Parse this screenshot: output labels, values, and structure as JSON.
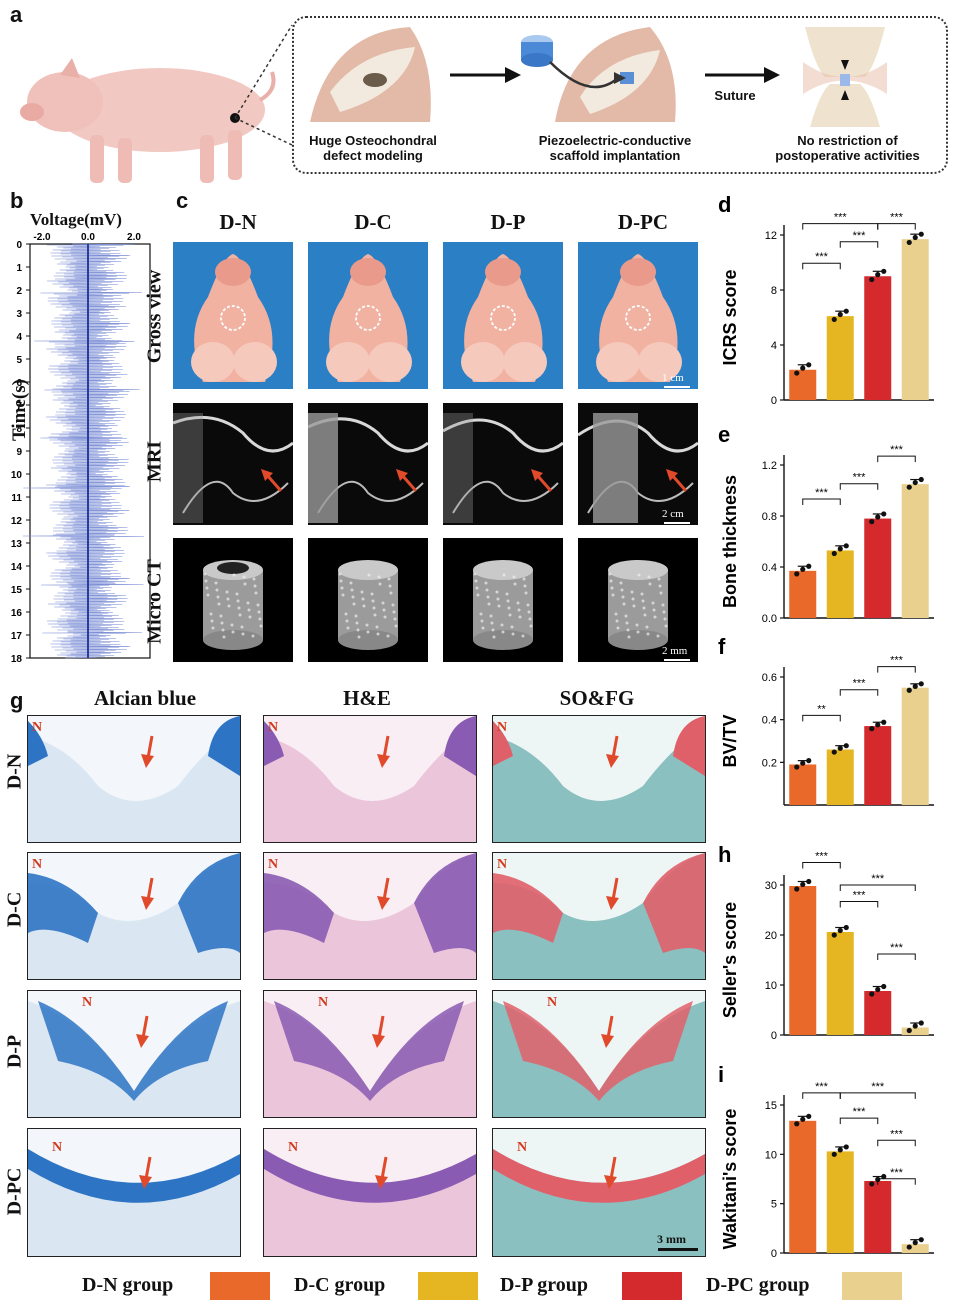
{
  "colors": {
    "dn": "#e8692a",
    "dc": "#e6b622",
    "dp": "#d42a2e",
    "dpc": "#e9d08e",
    "arrow": "#e04a2a"
  },
  "panel_a": {
    "label": "a",
    "step1": "Huge Osteochondral defect modeling",
    "step2": "Piezoelectric-conductive scaffold implantation",
    "step3": "No restriction of postoperative activities",
    "suture": "Suture"
  },
  "panel_b": {
    "label": "b",
    "xtitle": "Voltage(mV)",
    "ytitle": "Time(s)",
    "xticks": [
      "-2.0",
      "0.0",
      "2.0"
    ],
    "yticks": [
      "0",
      "1",
      "2",
      "3",
      "4",
      "5",
      "6",
      "7",
      "8",
      "9",
      "10",
      "11",
      "12",
      "13",
      "14",
      "15",
      "16",
      "17",
      "18"
    ]
  },
  "panel_c": {
    "label": "c",
    "groups": [
      "D-N",
      "D-C",
      "D-P",
      "D-PC"
    ],
    "rows": [
      "Gross view",
      "MRI",
      "Micro CT"
    ],
    "scales": [
      "1 cm",
      "2 cm",
      "2 mm"
    ]
  },
  "panel_g": {
    "label": "g",
    "stains": [
      "Alcian blue",
      "H&E",
      "SO&FG"
    ],
    "rows": [
      "D-N",
      "D-C",
      "D-P",
      "D-PC"
    ],
    "n_mark": "N",
    "scale": "3 mm"
  },
  "legend": {
    "items": [
      "D-N group",
      "D-C group",
      "D-P group",
      "D-PC group"
    ]
  },
  "chart_data": [
    {
      "id": "d",
      "label": "d",
      "type": "bar",
      "ylabel": "ICRS score",
      "ylim": [
        0,
        12
      ],
      "yticks": [
        "0",
        "4",
        "8",
        "12"
      ],
      "categories": [
        "D-N",
        "D-C",
        "D-P",
        "D-PC"
      ],
      "values": [
        2.2,
        6.1,
        9.0,
        11.7
      ],
      "sig": [
        "***",
        "***",
        "***",
        "***"
      ]
    },
    {
      "id": "e",
      "label": "e",
      "type": "bar",
      "ylabel": "Bone thickness",
      "ylim": [
        0,
        1.2
      ],
      "yticks": [
        "0.0",
        "0.4",
        "0.8",
        "1.2"
      ],
      "categories": [
        "D-N",
        "D-C",
        "D-P",
        "D-PC"
      ],
      "values": [
        0.37,
        0.53,
        0.78,
        1.05
      ],
      "sig": [
        "***",
        "***",
        "***"
      ]
    },
    {
      "id": "f",
      "label": "f",
      "type": "bar",
      "ylabel": "BV/TV",
      "ylim": [
        0,
        0.6
      ],
      "yticks": [
        "0.2",
        "0.4",
        "0.6"
      ],
      "categories": [
        "D-N",
        "D-C",
        "D-P",
        "D-PC"
      ],
      "values": [
        0.19,
        0.26,
        0.37,
        0.55
      ],
      "sig": [
        "**",
        "***",
        "***"
      ]
    },
    {
      "id": "h",
      "label": "h",
      "type": "bar",
      "ylabel": "Seller's score",
      "ylim": [
        0,
        30
      ],
      "yticks": [
        "0",
        "10",
        "20",
        "30"
      ],
      "categories": [
        "D-N",
        "D-C",
        "D-P",
        "D-PC"
      ],
      "values": [
        29.8,
        20.6,
        8.8,
        1.5
      ],
      "sig": [
        "***",
        "***",
        "***",
        "***"
      ]
    },
    {
      "id": "i",
      "label": "i",
      "type": "bar",
      "ylabel": "Wakitani's score",
      "ylim": [
        0,
        15
      ],
      "yticks": [
        "0",
        "5",
        "10",
        "15"
      ],
      "categories": [
        "D-N",
        "D-C",
        "D-P",
        "D-PC"
      ],
      "values": [
        13.4,
        10.3,
        7.3,
        0.9
      ],
      "sig": [
        "***",
        "***",
        "***",
        "***",
        "***"
      ]
    }
  ]
}
